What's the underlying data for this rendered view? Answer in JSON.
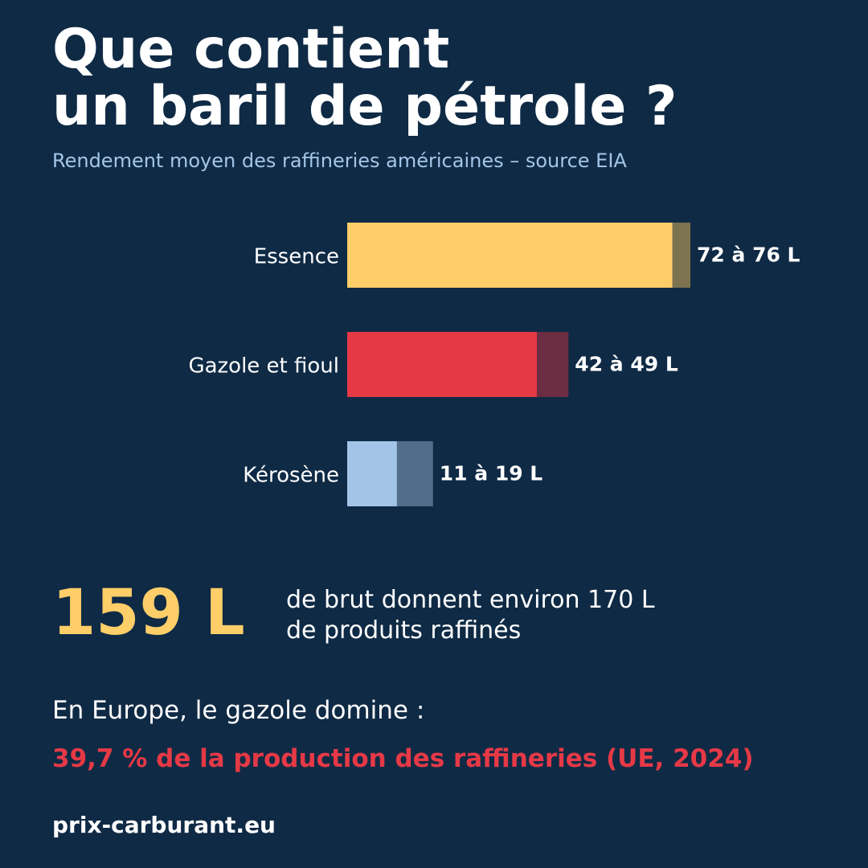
{
  "header": {
    "title_line1": "Que contient",
    "title_line2": "un baril de pétrole ?",
    "subtitle": "Rendement moyen des raffineries américaines – source EIA"
  },
  "chart_data": {
    "type": "bar",
    "orientation": "horizontal",
    "categories": [
      "Essence",
      "Gazole et fioul",
      "Kérosène"
    ],
    "series": [
      {
        "values": [
          72,
          42,
          11
        ]
      },
      {
        "values": [
          76,
          49,
          19
        ]
      }
    ],
    "data_labels": [
      "72 à 76 L",
      "42 à 49 L",
      "11 à 19 L"
    ],
    "unit": "L",
    "xlim": [
      0,
      76
    ],
    "grid": false,
    "colors": {
      "base": [
        "#fece68",
        "#e63946",
        "#a2c4e6"
      ],
      "range": [
        "#7d7350",
        "#6b2d42",
        "#506d8c"
      ],
      "label": "#ffffff",
      "category_label": "#ffffff"
    }
  },
  "stat": {
    "number": "159 L",
    "text_line1": "de brut donnent environ 170 L",
    "text_line2": "de produits raffinés",
    "number_color": "#fece68"
  },
  "europe": {
    "text": "En Europe, le gazole domine :",
    "highlight": "39,7 % de la production des raffineries (UE, 2024)",
    "highlight_color": "#e63946"
  },
  "footer": {
    "site": "prix-carburant.eu"
  },
  "colors": {
    "background": "#0f2a45",
    "subtitle": "#a4c6e6",
    "text": "#ffffff"
  }
}
